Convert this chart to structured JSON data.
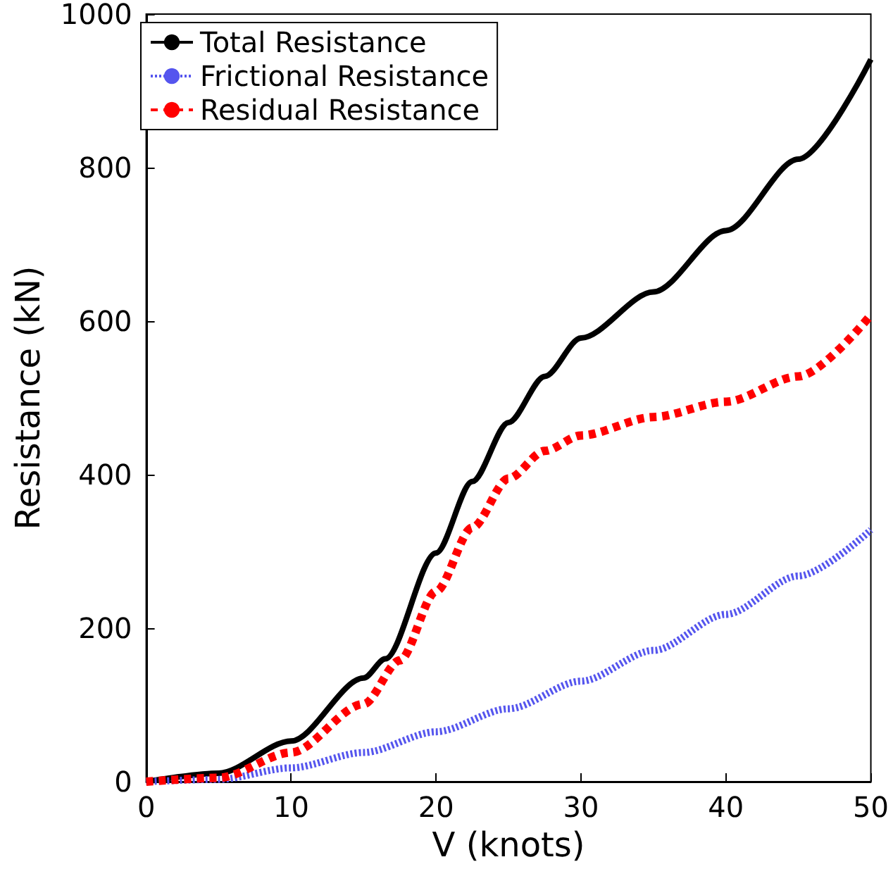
{
  "chart_data": {
    "type": "line",
    "xlabel": "V (knots)",
    "ylabel": "Resistance (kN)",
    "xlim": [
      0,
      50
    ],
    "ylim": [
      0,
      1000
    ],
    "xticks": [
      0,
      10,
      20,
      30,
      40,
      50
    ],
    "yticks": [
      0,
      200,
      400,
      600,
      800,
      1000
    ],
    "grid": false,
    "legend": "top left",
    "series": [
      {
        "name": "Total Resistance",
        "color": "#000000",
        "line_style": "solid",
        "x": [
          0,
          5,
          10,
          15,
          16.5,
          20,
          22.5,
          25,
          27.5,
          30,
          35,
          40,
          45,
          50
        ],
        "values": [
          0,
          11,
          53,
          135,
          160,
          298,
          391,
          468,
          528,
          578,
          638,
          718,
          811,
          941
        ]
      },
      {
        "name": "Frictional Resistance",
        "color": "#5555ee",
        "line_style": "dotted",
        "x": [
          0,
          5,
          10,
          15,
          20,
          25,
          30,
          35,
          40,
          45,
          50
        ],
        "values": [
          0,
          3,
          18,
          38,
          65,
          95,
          131,
          171,
          218,
          268,
          328
        ]
      },
      {
        "name": "Residual Resistance",
        "color": "#ff0000",
        "line_style": "dashed",
        "x": [
          0,
          5,
          10,
          15,
          17.5,
          20,
          22.5,
          25,
          27.5,
          30,
          35,
          40,
          45,
          50
        ],
        "values": [
          0,
          5,
          38,
          101,
          158,
          248,
          331,
          395,
          431,
          451,
          475,
          495,
          528,
          608
        ]
      }
    ]
  }
}
